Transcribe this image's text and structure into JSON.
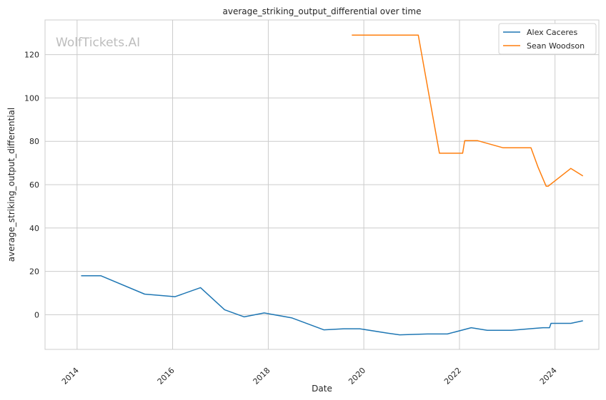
{
  "chart_data": {
    "type": "line",
    "title": "average_striking_output_differential over time",
    "xlabel": "Date",
    "ylabel": "average_striking_output_differential",
    "watermark": "WolfTickets.AI",
    "x_ticks": [
      "2014",
      "2016",
      "2018",
      "2020",
      "2022",
      "2024"
    ],
    "y_ticks": [
      "0",
      "20",
      "40",
      "60",
      "80",
      "100",
      "120"
    ],
    "xlim": [
      "2013-05-01",
      "2024-12-01"
    ],
    "ylim": [
      -16,
      136
    ],
    "grid": true,
    "legend_position": "top-right",
    "series": [
      {
        "name": "Alex Caceres",
        "color": "#1f77b4",
        "points": [
          [
            "2014-02-01",
            18.0
          ],
          [
            "2014-07-01",
            18.0
          ],
          [
            "2015-06-01",
            9.5
          ],
          [
            "2016-01-20",
            8.3
          ],
          [
            "2016-08-01",
            12.5
          ],
          [
            "2017-02-01",
            2.3
          ],
          [
            "2017-07-01",
            -1.0
          ],
          [
            "2017-12-01",
            0.8
          ],
          [
            "2018-07-01",
            -1.5
          ],
          [
            "2019-03-01",
            -7.0
          ],
          [
            "2019-08-01",
            -6.5
          ],
          [
            "2019-12-01",
            -6.5
          ],
          [
            "2020-07-01",
            -8.5
          ],
          [
            "2020-10-01",
            -9.3
          ],
          [
            "2021-05-01",
            -8.9
          ],
          [
            "2021-10-01",
            -8.9
          ],
          [
            "2022-04-01",
            -6.0
          ],
          [
            "2022-08-01",
            -7.2
          ],
          [
            "2023-02-01",
            -7.2
          ],
          [
            "2023-08-01",
            -6.3
          ],
          [
            "2023-10-01",
            -6.0
          ],
          [
            "2023-11-20",
            -6.0
          ],
          [
            "2023-12-01",
            -4.0
          ],
          [
            "2024-05-01",
            -4.0
          ],
          [
            "2024-08-01",
            -2.8
          ]
        ]
      },
      {
        "name": "Sean Woodson",
        "color": "#ff7f0e",
        "points": [
          [
            "2019-10-01",
            129.0
          ],
          [
            "2021-02-20",
            129.0
          ],
          [
            "2021-08-01",
            74.5
          ],
          [
            "2022-01-25",
            74.5
          ],
          [
            "2022-02-10",
            80.3
          ],
          [
            "2022-05-20",
            80.3
          ],
          [
            "2022-12-01",
            77.0
          ],
          [
            "2023-07-01",
            77.0
          ],
          [
            "2023-08-25",
            68.0
          ],
          [
            "2023-10-25",
            59.3
          ],
          [
            "2023-11-10",
            59.3
          ],
          [
            "2024-05-01",
            67.5
          ],
          [
            "2024-08-01",
            64.0
          ]
        ]
      }
    ]
  }
}
